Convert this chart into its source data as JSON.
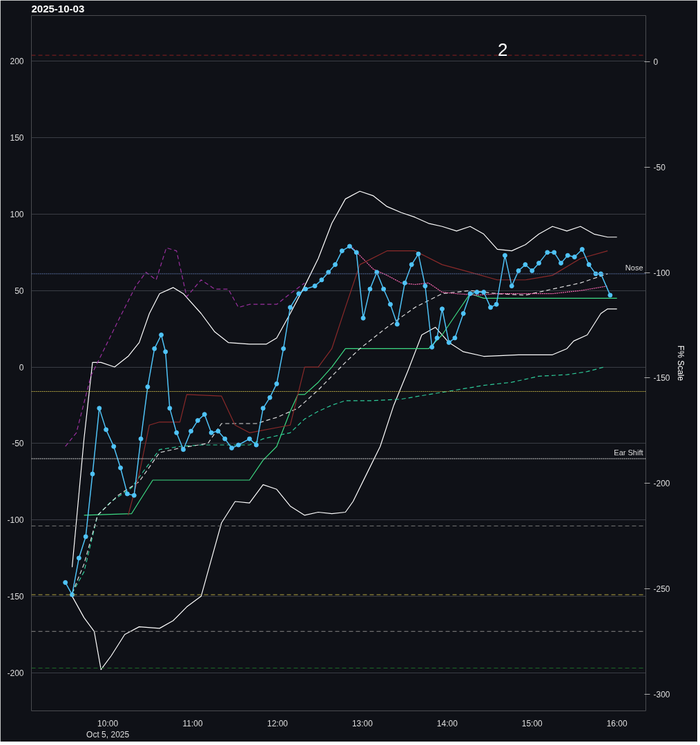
{
  "chart_data": {
    "type": "line",
    "title": "2025-10-03",
    "y2label": "F% Scale",
    "xlim": [
      9.1,
      16.34
    ],
    "ylim": [
      -225,
      230
    ],
    "y2lim": [
      -308,
      22
    ],
    "xticks": [
      {
        "value": 10,
        "label": "10:00\nOct 5, 2025"
      },
      {
        "value": 11,
        "label": "11:00"
      },
      {
        "value": 12,
        "label": "12:00"
      },
      {
        "value": 13,
        "label": "13:00"
      },
      {
        "value": 14,
        "label": "14:00"
      },
      {
        "value": 15,
        "label": "15:00"
      },
      {
        "value": 16,
        "label": "16:00"
      }
    ],
    "yticks": [
      -200,
      -150,
      -100,
      -50,
      0,
      50,
      100,
      150,
      200
    ],
    "y2ticks": [
      -300,
      -250,
      -200,
      -150,
      -100,
      -50,
      0
    ],
    "grid": "y",
    "series": [
      {
        "color": "#ffffff",
        "line_style": "solid",
        "x": [
          9.58,
          9.72,
          9.82,
          9.92,
          10.08,
          10.24,
          10.37,
          10.49,
          10.61,
          10.77,
          10.89,
          11.1,
          11.26,
          11.42,
          11.67,
          11.87,
          11.99,
          12.15,
          12.32,
          12.48,
          12.64,
          12.8,
          12.97,
          13.13,
          13.29,
          13.46,
          13.62,
          13.78,
          13.94,
          14.11,
          14.27,
          14.43,
          14.59,
          14.76,
          14.92,
          15.08,
          15.24,
          15.41,
          15.57,
          15.73,
          15.89,
          16.0
        ],
        "values": [
          -131,
          -47,
          3,
          3,
          0,
          7,
          16,
          35,
          48,
          52,
          48,
          35,
          23,
          16,
          15,
          15,
          19,
          35,
          53,
          71,
          94,
          110,
          115,
          112,
          105,
          101,
          98,
          94,
          92,
          89,
          92,
          87,
          77,
          76,
          80,
          87,
          92,
          89,
          92,
          87,
          85,
          85
        ]
      },
      {
        "color": "#ffffff",
        "line_style": "solid",
        "x": [
          9.58,
          9.72,
          9.84,
          9.92,
          10.04,
          10.2,
          10.37,
          10.61,
          10.77,
          10.93,
          11.1,
          11.18,
          11.34,
          11.5,
          11.67,
          11.83,
          11.99,
          12.15,
          12.32,
          12.48,
          12.64,
          12.8,
          12.89,
          13.05,
          13.21,
          13.37,
          13.54,
          13.7,
          13.86,
          14.02,
          14.19,
          14.43,
          14.84,
          15.24,
          15.41,
          15.49,
          15.65,
          15.81,
          15.89,
          16.0
        ],
        "values": [
          -150,
          -164,
          -173,
          -198,
          -189,
          -175,
          -170,
          -171,
          -166,
          -157,
          -150,
          -134,
          -102,
          -88,
          -89,
          -77,
          -80,
          -91,
          -97,
          -95,
          -96,
          -95,
          -88,
          -70,
          -52,
          -25,
          -2,
          21,
          26,
          16,
          10,
          7,
          8,
          8,
          12,
          17,
          21,
          35,
          38,
          38
        ]
      },
      {
        "color": "#3ddc84",
        "line_style": "solid",
        "x": [
          9.72,
          10.28,
          10.37,
          10.53,
          11.67,
          11.83,
          11.99,
          12.15,
          12.24,
          12.32,
          12.48,
          12.64,
          12.8,
          13.78,
          13.94,
          14.11,
          14.27,
          14.43,
          16.0
        ],
        "values": [
          -97,
          -96,
          -88,
          -74,
          -74,
          -61,
          -52,
          -29,
          -18,
          -18,
          -10,
          0,
          12,
          12,
          21,
          35,
          48,
          45,
          45
        ]
      },
      {
        "color": "#2ecc9a",
        "line_style": "dashed",
        "x": [
          9.58,
          9.72,
          9.88,
          10.04,
          10.28,
          10.45,
          10.61,
          10.85,
          11.1,
          11.67,
          11.83,
          12.15,
          12.32,
          12.48,
          12.64,
          12.8,
          13.13,
          13.46,
          13.78,
          14.11,
          14.43,
          14.76,
          15.08,
          15.41,
          15.65,
          15.85
        ],
        "values": [
          -148,
          -134,
          -97,
          -88,
          -79,
          -66,
          -54,
          -52,
          -51,
          -51,
          -47,
          -43,
          -34,
          -29,
          -25,
          -22,
          -22,
          -21,
          -18,
          -15,
          -12,
          -10,
          -6,
          -5,
          -3,
          0
        ]
      },
      {
        "color": "#e0e0e0",
        "line_style": "dashed",
        "x": [
          9.58,
          9.72,
          9.88,
          10.12,
          10.37,
          10.61,
          10.85,
          11.18,
          11.34,
          11.5,
          11.75,
          11.99,
          12.24,
          12.48,
          12.64,
          12.8,
          12.97,
          13.29,
          13.62,
          13.94,
          14.27,
          14.59,
          14.92,
          15.24,
          15.57,
          15.89
        ],
        "values": [
          -148,
          -129,
          -97,
          -84,
          -75,
          -56,
          -53,
          -50,
          -37,
          -37,
          -37,
          -33,
          -27,
          -15,
          -6,
          3,
          12,
          26,
          39,
          48,
          50,
          48,
          47,
          51,
          55,
          61
        ]
      },
      {
        "color": "#ff69b4",
        "line_style": "dotted",
        "x": [
          12.85,
          12.97,
          13.13,
          13.29,
          13.46,
          13.62,
          13.78,
          13.94,
          14.11,
          14.35,
          14.59,
          15.24,
          15.57,
          15.89
        ],
        "values": [
          80,
          73,
          64,
          60,
          55,
          54,
          55,
          49,
          48,
          47,
          48,
          48,
          50,
          53
        ]
      },
      {
        "color": "#9b30a0",
        "line_style": "dashed",
        "x": [
          9.5,
          9.63,
          9.8,
          9.96,
          10.12,
          10.33,
          10.45,
          10.57,
          10.69,
          10.81,
          10.93,
          11.1,
          11.26,
          11.42,
          11.54,
          11.67,
          11.99,
          12.15,
          12.32
        ],
        "values": [
          -52,
          -43,
          -6,
          12,
          30,
          53,
          62,
          57,
          78,
          76,
          46,
          57,
          51,
          51,
          39,
          41,
          41,
          48,
          55
        ]
      },
      {
        "color": "#8b2a2a",
        "line_style": "solid",
        "x": [
          10.24,
          10.37,
          10.49,
          10.61,
          10.85,
          10.93,
          11.34,
          11.5,
          11.67,
          12.15,
          12.32,
          12.48,
          12.64,
          12.8,
          12.97,
          13.29,
          13.62,
          13.94,
          14.27,
          14.59,
          14.92,
          15.24,
          15.57,
          15.89
        ],
        "values": [
          -97,
          -70,
          -38,
          -36,
          -36,
          -18,
          -19,
          -38,
          -43,
          -38,
          0,
          0,
          12,
          39,
          67,
          76,
          76,
          67,
          62,
          57,
          57,
          60,
          71,
          76
        ]
      },
      {
        "color": "#4fc3f7",
        "line_style": "solid",
        "marker": "circle",
        "x": [
          9.5,
          9.58,
          9.66,
          9.74,
          9.82,
          9.9,
          9.98,
          10.07,
          10.15,
          10.23,
          10.31,
          10.39,
          10.47,
          10.55,
          10.63,
          10.68,
          10.73,
          10.81,
          10.89,
          10.98,
          11.06,
          11.14,
          11.22,
          11.3,
          11.38,
          11.46,
          11.54,
          11.67,
          11.75,
          11.83,
          11.91,
          11.99,
          12.07,
          12.15,
          12.25,
          12.33,
          12.44,
          12.52,
          12.6,
          12.68,
          12.76,
          12.85,
          12.93,
          13.01,
          13.09,
          13.17,
          13.25,
          13.33,
          13.41,
          13.5,
          13.58,
          13.66,
          13.74,
          13.82,
          13.88,
          13.94,
          14.02,
          14.09,
          14.19,
          14.27,
          14.35,
          14.43,
          14.51,
          14.58,
          14.68,
          14.76,
          14.84,
          14.92,
          15.0,
          15.08,
          15.18,
          15.26,
          15.34,
          15.42,
          15.5,
          15.59,
          15.67,
          15.75,
          15.81,
          15.92
        ],
        "values": [
          -141,
          -149,
          -125,
          -111,
          -70,
          -27,
          -41,
          -52,
          -66,
          -83,
          -84,
          -47,
          -13,
          12,
          21,
          10,
          -27,
          -43,
          -54,
          -42,
          -35,
          -31,
          -43,
          -42,
          -47,
          -53,
          -51,
          -47,
          -51,
          -27,
          -20,
          -11,
          12,
          39,
          48,
          51,
          53,
          57,
          62,
          67,
          76,
          79,
          75,
          32,
          51,
          62,
          51,
          41,
          28,
          55,
          67,
          74,
          53,
          13,
          19,
          38,
          16,
          19,
          35,
          48,
          49,
          49,
          39,
          41,
          73,
          53,
          63,
          67,
          63,
          68,
          75,
          75,
          68,
          73,
          72,
          77,
          67,
          61,
          61,
          47
        ]
      }
    ],
    "ref_lines": [
      {
        "axis": "y",
        "value": 204,
        "color": "#8b2020",
        "line_style": "dashed"
      },
      {
        "axis": "y",
        "value": 61,
        "label": "Nose",
        "color": "#5a6fa0",
        "line_style": "dotted"
      },
      {
        "axis": "y",
        "value": -16,
        "color": "#b5a642",
        "line_style": "dotted"
      },
      {
        "axis": "y",
        "value": -60,
        "label": "Ear Shift",
        "color": "#dddddd",
        "line_style": "dotted"
      },
      {
        "axis": "y",
        "value": -104,
        "color": "#777777",
        "line_style": "dashed"
      },
      {
        "axis": "y",
        "value": -149,
        "color": "#b5a642",
        "line_style": "dashed"
      },
      {
        "axis": "y",
        "value": -173,
        "color": "#888888",
        "line_style": "dashed"
      },
      {
        "axis": "y",
        "value": -197,
        "color": "#1f6b2a",
        "line_style": "dashed"
      }
    ],
    "annotations": [
      "2"
    ]
  }
}
